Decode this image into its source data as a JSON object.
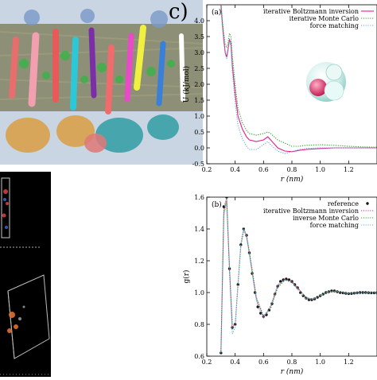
{
  "panel_label": "c)",
  "chart_data": [
    {
      "type": "line",
      "panel": "(a)",
      "xlabel": "r (nm)",
      "ylabel": "U (kJ/mol)",
      "xlim": [
        0.2,
        1.4
      ],
      "ylim": [
        -0.5,
        4.5
      ],
      "xticks": [
        "0.2",
        "0.4",
        "0.6",
        "0.8",
        "1.0",
        "1.2"
      ],
      "yticks": [
        "-0.5",
        "0.0",
        "0.5",
        "1.0",
        "1.5",
        "2.0",
        "2.5",
        "3.0",
        "3.5",
        "4.0"
      ],
      "legend_position": "top-right",
      "series": [
        {
          "name": "iterative Boltzmann inversion",
          "color": "#e0218a",
          "dash": "solid",
          "x": [
            0.3,
            0.31,
            0.32,
            0.33,
            0.34,
            0.35,
            0.36,
            0.37,
            0.38,
            0.4,
            0.42,
            0.45,
            0.48,
            0.5,
            0.55,
            0.6,
            0.63,
            0.65,
            0.7,
            0.75,
            0.8,
            0.85,
            0.9,
            1.0,
            1.1,
            1.2,
            1.3,
            1.4
          ],
          "y": [
            4.5,
            3.9,
            3.4,
            3.0,
            2.85,
            3.1,
            3.4,
            3.3,
            2.6,
            1.7,
            1.0,
            0.6,
            0.35,
            0.25,
            0.2,
            0.25,
            0.35,
            0.25,
            0.0,
            -0.1,
            -0.12,
            -0.08,
            -0.05,
            -0.02,
            0.0,
            0.0,
            0.0,
            0.0
          ]
        },
        {
          "name": "iterative Monte Carlo",
          "color": "#2ca02c",
          "dash": "dot",
          "x": [
            0.3,
            0.31,
            0.32,
            0.33,
            0.34,
            0.35,
            0.36,
            0.37,
            0.38,
            0.4,
            0.42,
            0.45,
            0.48,
            0.5,
            0.55,
            0.6,
            0.63,
            0.65,
            0.7,
            0.75,
            0.8,
            0.85,
            0.9,
            1.0,
            1.1,
            1.2,
            1.3,
            1.4
          ],
          "y": [
            4.6,
            4.0,
            3.6,
            3.25,
            3.15,
            3.3,
            3.6,
            3.5,
            2.9,
            2.0,
            1.25,
            0.8,
            0.55,
            0.45,
            0.4,
            0.45,
            0.5,
            0.45,
            0.25,
            0.15,
            0.05,
            0.05,
            0.08,
            0.1,
            0.08,
            0.05,
            0.03,
            0.02
          ]
        },
        {
          "name": "force matching",
          "color": "#6aa8d8",
          "dash": "dot",
          "x": [
            0.3,
            0.31,
            0.32,
            0.33,
            0.34,
            0.35,
            0.36,
            0.37,
            0.38,
            0.4,
            0.42,
            0.45,
            0.48,
            0.5,
            0.55,
            0.6,
            0.63,
            0.65,
            0.7,
            0.75,
            0.8,
            0.85,
            0.9,
            1.0,
            1.1,
            1.2,
            1.3,
            1.4
          ],
          "y": [
            4.4,
            3.8,
            3.3,
            2.95,
            2.8,
            3.05,
            3.35,
            3.2,
            2.4,
            1.4,
            0.7,
            0.3,
            0.05,
            -0.05,
            -0.05,
            0.1,
            0.2,
            0.1,
            -0.1,
            -0.18,
            -0.12,
            -0.05,
            -0.02,
            0.0,
            0.0,
            0.0,
            0.0,
            0.0
          ]
        }
      ]
    },
    {
      "type": "line",
      "panel": "(b)",
      "xlabel": "r (nm)",
      "ylabel": "g(r)",
      "xlim": [
        0.2,
        1.4
      ],
      "ylim": [
        0.6,
        1.6
      ],
      "xticks": [
        "0.2",
        "0.4",
        "0.6",
        "0.8",
        "1.0",
        "1.2"
      ],
      "yticks": [
        "0.6",
        "0.8",
        "1.0",
        "1.2",
        "1.4",
        "1.6"
      ],
      "legend_position": "top-right",
      "series": [
        {
          "name": "reference",
          "color": "#111111",
          "marker": "dot",
          "x": [
            0.3,
            0.32,
            0.34,
            0.36,
            0.38,
            0.4,
            0.42,
            0.44,
            0.46,
            0.48,
            0.5,
            0.52,
            0.54,
            0.56,
            0.58,
            0.6,
            0.62,
            0.64,
            0.66,
            0.68,
            0.7,
            0.72,
            0.74,
            0.76,
            0.78,
            0.8,
            0.82,
            0.84,
            0.86,
            0.88,
            0.9,
            0.92,
            0.94,
            0.96,
            0.98,
            1.0,
            1.02,
            1.04,
            1.06,
            1.08,
            1.1,
            1.12,
            1.14,
            1.16,
            1.18,
            1.2,
            1.22,
            1.24,
            1.26,
            1.28,
            1.3,
            1.32,
            1.34,
            1.36,
            1.38,
            1.4
          ],
          "y": [
            0.62,
            1.54,
            1.6,
            1.15,
            0.78,
            0.8,
            1.05,
            1.3,
            1.4,
            1.36,
            1.25,
            1.12,
            1.0,
            0.91,
            0.87,
            0.85,
            0.86,
            0.89,
            0.93,
            0.99,
            1.04,
            1.07,
            1.08,
            1.085,
            1.08,
            1.07,
            1.05,
            1.03,
            1.0,
            0.98,
            0.965,
            0.955,
            0.955,
            0.96,
            0.97,
            0.98,
            0.99,
            1.0,
            1.005,
            1.01,
            1.01,
            1.005,
            1.0,
            0.998,
            0.995,
            0.993,
            0.994,
            0.996,
            0.998,
            1.0,
            1.0,
            1.0,
            0.999,
            0.998,
            0.998,
            0.999
          ]
        },
        {
          "name": "iterative Boltzmann inversion",
          "color": "#e0218a",
          "dash": "dot",
          "x": [
            0.3,
            0.32,
            0.34,
            0.36,
            0.38,
            0.4,
            0.42,
            0.44,
            0.46,
            0.48,
            0.5,
            0.55,
            0.6,
            0.65,
            0.7,
            0.75,
            0.8,
            0.85,
            0.9,
            0.95,
            1.0,
            1.05,
            1.1,
            1.2,
            1.3,
            1.4
          ],
          "y": [
            0.63,
            1.52,
            1.59,
            1.14,
            0.78,
            0.8,
            1.05,
            1.3,
            1.4,
            1.36,
            1.25,
            0.96,
            0.85,
            0.91,
            1.04,
            1.085,
            1.07,
            1.02,
            0.965,
            0.955,
            0.98,
            1.003,
            1.01,
            0.993,
            1.0,
            0.998
          ]
        },
        {
          "name": "inverse Monte Carlo",
          "color": "#2ca02c",
          "dash": "dot",
          "x": [
            0.3,
            0.32,
            0.34,
            0.36,
            0.38,
            0.4,
            0.42,
            0.44,
            0.46,
            0.48,
            0.5,
            0.55,
            0.6,
            0.65,
            0.7,
            0.75,
            0.8,
            0.85,
            0.9,
            0.95,
            1.0,
            1.05,
            1.1,
            1.2,
            1.3,
            1.4
          ],
          "y": [
            0.62,
            1.5,
            1.58,
            1.16,
            0.8,
            0.79,
            1.04,
            1.29,
            1.39,
            1.36,
            1.26,
            0.97,
            0.85,
            0.9,
            1.03,
            1.08,
            1.07,
            1.02,
            0.97,
            0.956,
            0.98,
            1.002,
            1.01,
            0.994,
            1.0,
            0.998
          ]
        },
        {
          "name": "force matching",
          "color": "#6aa8d8",
          "dash": "dot",
          "x": [
            0.3,
            0.32,
            0.34,
            0.36,
            0.38,
            0.4,
            0.42,
            0.44,
            0.46,
            0.48,
            0.5,
            0.55,
            0.6,
            0.65,
            0.7,
            0.75,
            0.8,
            0.85,
            0.9,
            0.95,
            1.0,
            1.05,
            1.1,
            1.2,
            1.3,
            1.4
          ],
          "y": [
            0.61,
            1.48,
            1.57,
            1.18,
            0.74,
            0.78,
            1.06,
            1.31,
            1.41,
            1.35,
            1.24,
            0.95,
            0.84,
            0.92,
            1.05,
            1.08,
            1.06,
            1.01,
            0.96,
            0.958,
            0.985,
            1.004,
            1.008,
            0.993,
            1.0,
            0.999
          ]
        }
      ]
    }
  ]
}
